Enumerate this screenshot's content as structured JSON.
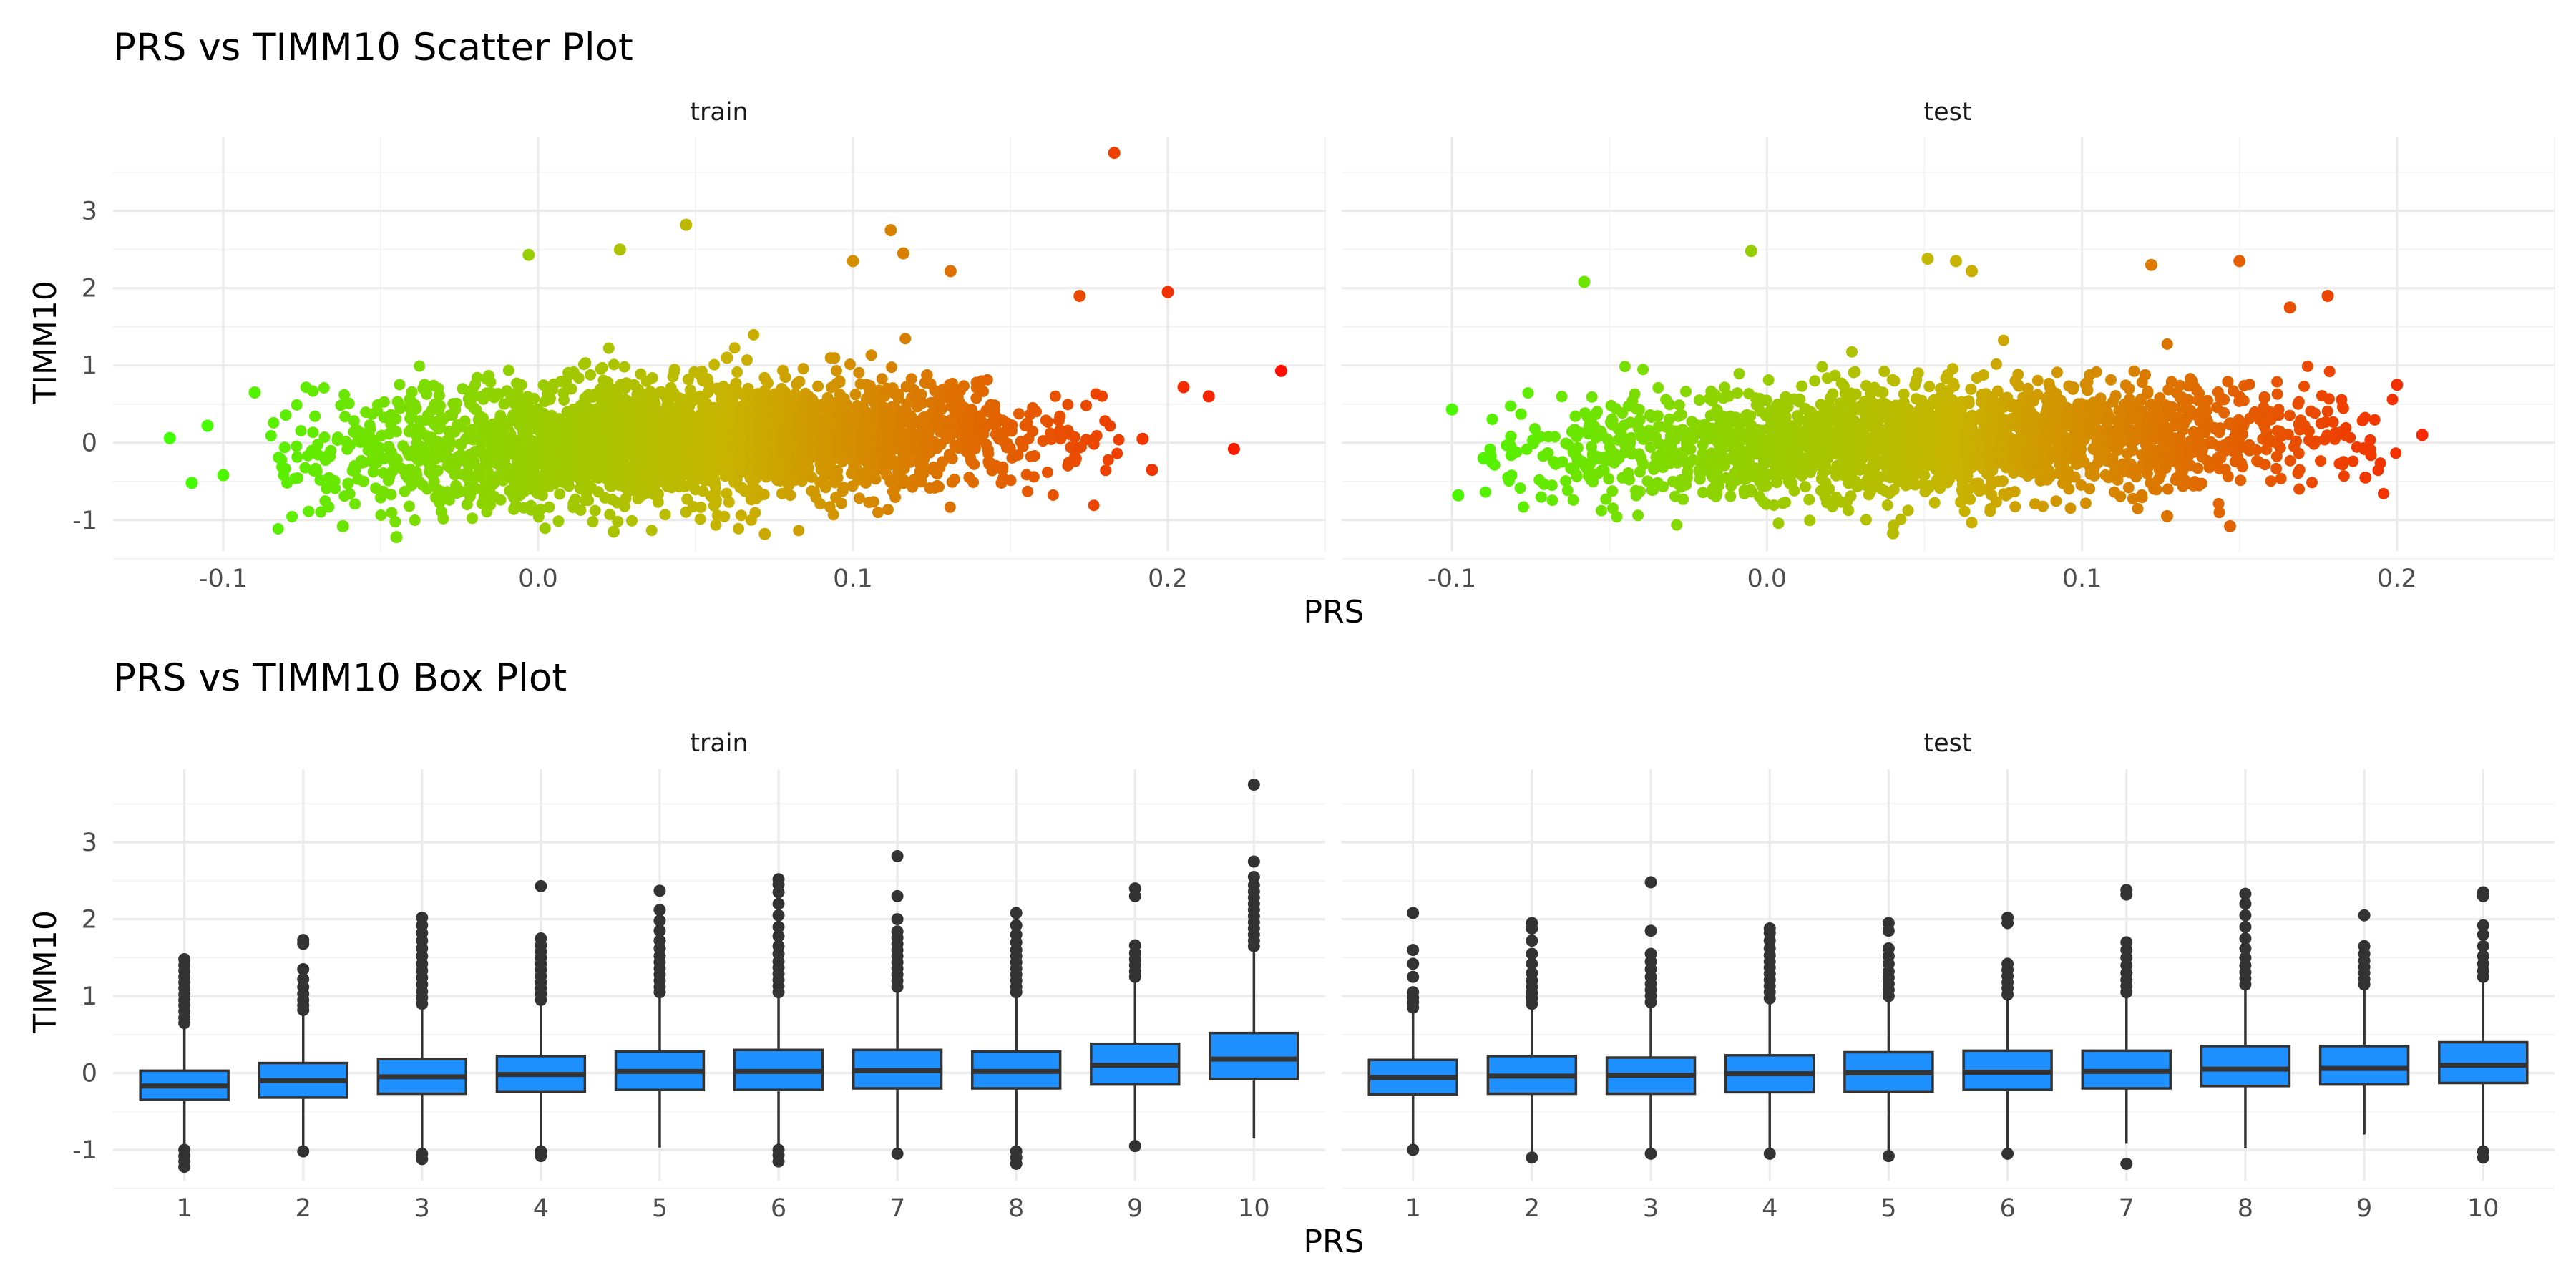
{
  "colors": {
    "low": "#3cff00",
    "mid": "#c8b400",
    "high": "#ff0a00",
    "box_fill": "#1e90ff",
    "box_line": "#333333",
    "outlier": "#333333"
  },
  "chart_data": [
    {
      "type": "scatter",
      "title": "PRS vs TIMM10 Scatter Plot",
      "xlabel": "PRS",
      "ylabel": "TIMM10",
      "xlim": [
        -0.135,
        0.25
      ],
      "ylim": [
        -1.4,
        3.95
      ],
      "x_ticks": [
        -0.1,
        0.0,
        0.1,
        0.2
      ],
      "x_tick_labels": [
        "-0.1",
        "0.0",
        "0.1",
        "0.2"
      ],
      "y_ticks": [
        -1,
        0,
        1,
        2,
        3
      ],
      "y_tick_labels": [
        "-1",
        "0",
        "1",
        "2",
        "3"
      ],
      "color_mapping": "gradient by PRS (green to red)",
      "facets": [
        {
          "label": "train",
          "bulk": {
            "x_range": [
              -0.08,
              0.175
            ],
            "y_mean": 0.0,
            "y_sd": 0.38,
            "trend_slope": 1.2
          },
          "points": [
            {
              "x": 0.183,
              "y": 3.75
            },
            {
              "x": 0.236,
              "y": 0.93
            },
            {
              "x": 0.221,
              "y": -0.08
            },
            {
              "x": 0.2,
              "y": 1.95
            },
            {
              "x": 0.213,
              "y": 0.6
            },
            {
              "x": -0.117,
              "y": 0.06
            },
            {
              "x": -0.11,
              "y": -0.52
            },
            {
              "x": -0.105,
              "y": 0.22
            },
            {
              "x": -0.09,
              "y": 0.65
            },
            {
              "x": 0.047,
              "y": 2.82
            },
            {
              "x": 0.112,
              "y": 2.75
            },
            {
              "x": 0.026,
              "y": 2.5
            },
            {
              "x": -0.003,
              "y": 2.43
            },
            {
              "x": 0.116,
              "y": 2.45
            },
            {
              "x": 0.1,
              "y": 2.35
            },
            {
              "x": 0.131,
              "y": 2.22
            },
            {
              "x": 0.06,
              "y": 1.1
            },
            {
              "x": -0.045,
              "y": -1.22
            },
            {
              "x": 0.072,
              "y": -1.18
            },
            {
              "x": 0.024,
              "y": -1.15
            },
            {
              "x": -0.062,
              "y": -1.08
            },
            {
              "x": 0.172,
              "y": 1.9
            },
            {
              "x": 0.192,
              "y": 0.05
            },
            {
              "x": -0.1,
              "y": -0.42
            },
            {
              "x": 0.205,
              "y": 0.72
            },
            {
              "x": 0.195,
              "y": -0.35
            }
          ]
        },
        {
          "label": "test",
          "bulk": {
            "x_range": [
              -0.085,
              0.19
            ],
            "y_mean": 0.0,
            "y_sd": 0.36,
            "trend_slope": 1.0
          },
          "points": [
            {
              "x": -0.1,
              "y": 0.43
            },
            {
              "x": -0.098,
              "y": -0.68
            },
            {
              "x": -0.005,
              "y": 2.48
            },
            {
              "x": 0.051,
              "y": 2.38
            },
            {
              "x": 0.06,
              "y": 2.35
            },
            {
              "x": 0.15,
              "y": 2.35
            },
            {
              "x": 0.122,
              "y": 2.3
            },
            {
              "x": 0.208,
              "y": 0.1
            },
            {
              "x": 0.2,
              "y": 0.75
            },
            {
              "x": 0.178,
              "y": 1.9
            },
            {
              "x": 0.147,
              "y": -1.08
            },
            {
              "x": 0.127,
              "y": -0.95
            },
            {
              "x": -0.058,
              "y": 2.08
            },
            {
              "x": 0.04,
              "y": -1.17
            },
            {
              "x": 0.19,
              "y": -0.45
            },
            {
              "x": 0.166,
              "y": 1.75
            },
            {
              "x": 0.065,
              "y": 2.22
            },
            {
              "x": -0.09,
              "y": -0.2
            }
          ]
        }
      ]
    },
    {
      "type": "box",
      "title": "PRS vs TIMM10 Box Plot",
      "xlabel": "PRS",
      "ylabel": "TIMM10",
      "categories": [
        "1",
        "2",
        "3",
        "4",
        "5",
        "6",
        "7",
        "8",
        "9",
        "10"
      ],
      "ylim": [
        -1.4,
        3.95
      ],
      "y_ticks": [
        -1,
        0,
        1,
        2,
        3
      ],
      "y_tick_labels": [
        "-1",
        "0",
        "1",
        "2",
        "3"
      ],
      "facets": [
        {
          "label": "train",
          "boxes": [
            {
              "q1": -0.35,
              "median": -0.17,
              "q3": 0.03,
              "whisker_low": -0.93,
              "whisker_high": 0.6,
              "outliers": [
                0.65,
                0.72,
                0.8,
                0.88,
                0.95,
                1.02,
                1.1,
                1.18,
                1.25,
                1.33,
                1.4,
                1.48,
                -1.0,
                -1.08,
                -1.15,
                -1.22
              ]
            },
            {
              "q1": -0.32,
              "median": -0.1,
              "q3": 0.13,
              "whisker_low": -0.98,
              "whisker_high": 0.78,
              "outliers": [
                0.82,
                0.88,
                0.95,
                1.03,
                1.12,
                1.22,
                1.35,
                1.68,
                1.73,
                -1.02
              ]
            },
            {
              "q1": -0.27,
              "median": -0.05,
              "q3": 0.18,
              "whisker_low": -1.0,
              "whisker_high": 0.85,
              "outliers": [
                0.9,
                0.98,
                1.06,
                1.15,
                1.24,
                1.33,
                1.42,
                1.52,
                1.62,
                1.72,
                1.82,
                1.92,
                2.02,
                -1.05,
                -1.12
              ]
            },
            {
              "q1": -0.24,
              "median": -0.02,
              "q3": 0.22,
              "whisker_low": -0.98,
              "whisker_high": 0.9,
              "outliers": [
                0.95,
                1.03,
                1.1,
                1.18,
                1.26,
                1.34,
                1.42,
                1.5,
                1.58,
                1.66,
                1.75,
                2.43,
                -1.02,
                -1.08
              ]
            },
            {
              "q1": -0.22,
              "median": 0.02,
              "q3": 0.28,
              "whisker_low": -0.97,
              "whisker_high": 1.0,
              "outliers": [
                1.05,
                1.12,
                1.2,
                1.28,
                1.36,
                1.44,
                1.52,
                1.62,
                1.72,
                1.85,
                1.98,
                2.12,
                2.37
              ]
            },
            {
              "q1": -0.22,
              "median": 0.02,
              "q3": 0.3,
              "whisker_low": -0.95,
              "whisker_high": 1.0,
              "outliers": [
                1.05,
                1.13,
                1.21,
                1.29,
                1.37,
                1.45,
                1.55,
                1.65,
                1.78,
                1.9,
                2.05,
                2.2,
                2.35,
                2.45,
                2.52,
                -1.0,
                -1.07,
                -1.15
              ]
            },
            {
              "q1": -0.2,
              "median": 0.03,
              "q3": 0.3,
              "whisker_low": -0.98,
              "whisker_high": 1.08,
              "outliers": [
                1.12,
                1.2,
                1.28,
                1.36,
                1.44,
                1.52,
                1.6,
                1.68,
                1.76,
                1.84,
                2.0,
                2.3,
                2.82,
                -1.05
              ]
            },
            {
              "q1": -0.2,
              "median": 0.02,
              "q3": 0.28,
              "whisker_low": -0.95,
              "whisker_high": 1.0,
              "outliers": [
                1.05,
                1.12,
                1.2,
                1.28,
                1.36,
                1.44,
                1.52,
                1.6,
                1.7,
                1.8,
                1.92,
                2.08,
                -1.02,
                -1.1,
                -1.18
              ]
            },
            {
              "q1": -0.15,
              "median": 0.1,
              "q3": 0.38,
              "whisker_low": -0.92,
              "whisker_high": 1.2,
              "outliers": [
                1.25,
                1.32,
                1.4,
                1.48,
                1.56,
                1.66,
                2.3,
                2.4,
                -0.95
              ]
            },
            {
              "q1": -0.08,
              "median": 0.18,
              "q3": 0.52,
              "whisker_low": -0.85,
              "whisker_high": 1.6,
              "outliers": [
                1.65,
                1.72,
                1.8,
                1.88,
                1.96,
                2.04,
                2.12,
                2.2,
                2.28,
                2.36,
                2.44,
                2.55,
                2.75,
                3.75
              ]
            }
          ]
        },
        {
          "label": "test",
          "boxes": [
            {
              "q1": -0.28,
              "median": -0.06,
              "q3": 0.17,
              "whisker_low": -0.95,
              "whisker_high": 0.8,
              "outliers": [
                0.85,
                0.92,
                0.98,
                1.05,
                1.25,
                1.42,
                1.6,
                2.08,
                -1.0
              ]
            },
            {
              "q1": -0.27,
              "median": -0.04,
              "q3": 0.22,
              "whisker_low": -1.05,
              "whisker_high": 0.85,
              "outliers": [
                0.9,
                0.97,
                1.04,
                1.12,
                1.2,
                1.3,
                1.42,
                1.55,
                1.72,
                1.88,
                1.95,
                -1.1
              ]
            },
            {
              "q1": -0.27,
              "median": -0.03,
              "q3": 0.2,
              "whisker_low": -1.0,
              "whisker_high": 0.88,
              "outliers": [
                0.92,
                1.0,
                1.08,
                1.16,
                1.25,
                1.35,
                1.45,
                1.55,
                1.85,
                2.48,
                -1.05
              ]
            },
            {
              "q1": -0.25,
              "median": -0.01,
              "q3": 0.23,
              "whisker_low": -1.0,
              "whisker_high": 0.92,
              "outliers": [
                0.97,
                1.05,
                1.13,
                1.21,
                1.29,
                1.37,
                1.45,
                1.53,
                1.62,
                1.72,
                1.82,
                1.88,
                -1.05
              ]
            },
            {
              "q1": -0.24,
              "median": 0.0,
              "q3": 0.27,
              "whisker_low": -1.02,
              "whisker_high": 0.95,
              "outliers": [
                1.0,
                1.08,
                1.16,
                1.24,
                1.32,
                1.42,
                1.52,
                1.62,
                1.85,
                1.95,
                -1.08
              ]
            },
            {
              "q1": -0.22,
              "median": 0.01,
              "q3": 0.29,
              "whisker_low": -1.0,
              "whisker_high": 0.98,
              "outliers": [
                1.02,
                1.1,
                1.18,
                1.26,
                1.34,
                1.42,
                1.95,
                2.02,
                -1.05
              ]
            },
            {
              "q1": -0.2,
              "median": 0.02,
              "q3": 0.29,
              "whisker_low": -0.92,
              "whisker_high": 1.0,
              "outliers": [
                1.05,
                1.13,
                1.21,
                1.3,
                1.4,
                1.5,
                1.6,
                1.7,
                2.32,
                2.38,
                -1.18
              ]
            },
            {
              "q1": -0.17,
              "median": 0.05,
              "q3": 0.35,
              "whisker_low": -0.98,
              "whisker_high": 1.1,
              "outliers": [
                1.15,
                1.23,
                1.31,
                1.4,
                1.5,
                1.62,
                1.75,
                1.9,
                2.05,
                2.2,
                2.33
              ]
            },
            {
              "q1": -0.15,
              "median": 0.06,
              "q3": 0.35,
              "whisker_low": -0.8,
              "whisker_high": 1.1,
              "outliers": [
                1.15,
                1.22,
                1.3,
                1.38,
                1.46,
                1.55,
                1.65,
                2.05
              ]
            },
            {
              "q1": -0.13,
              "median": 0.1,
              "q3": 0.4,
              "whisker_low": -0.95,
              "whisker_high": 1.2,
              "outliers": [
                1.25,
                1.33,
                1.42,
                1.52,
                1.65,
                1.8,
                1.92,
                2.3,
                2.35,
                -1.02,
                -1.1
              ]
            }
          ]
        }
      ]
    }
  ]
}
